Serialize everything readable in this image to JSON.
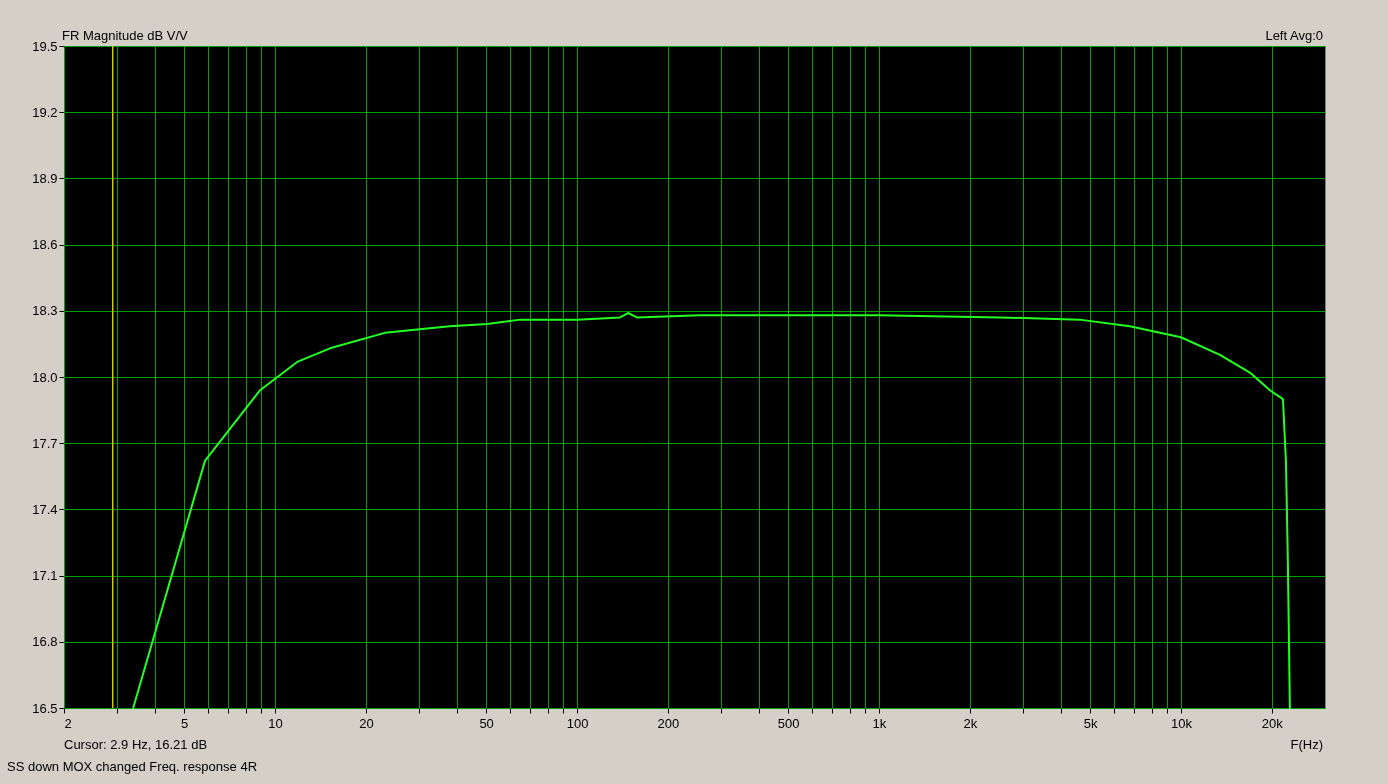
{
  "chart_data": {
    "type": "line",
    "ylabel": "FR Magnitude dB V/V",
    "xlabel": "F(Hz)",
    "annotations": [
      "Left  Avg:0",
      "Cursor:     2.9 Hz, 16.21 dB",
      "SS down MOX changed Freq. response 4R"
    ],
    "x": [
      3.39,
      5.86,
      8.92,
      11.9,
      15.2,
      23.1,
      37.9,
      50.4,
      64.9,
      100,
      138.8,
      147.6,
      158,
      255,
      1000,
      2515,
      4620,
      6770,
      10000,
      13470,
      16920,
      19720,
      21770,
      22270,
      22600,
      22950
    ],
    "series": [
      {
        "color": "#22ff22",
        "values": [
          16.5,
          17.62,
          17.94,
          18.07,
          18.13,
          18.2,
          18.23,
          18.24,
          18.26,
          18.26,
          18.27,
          18.29,
          18.27,
          18.28,
          18.28,
          18.27,
          18.26,
          18.23,
          18.18,
          18.1,
          18.02,
          17.94,
          17.9,
          17.62,
          17.17,
          16.5
        ]
      }
    ],
    "log": "x",
    "xlim": [
      2,
      30000
    ],
    "xticks": [
      2,
      {
        "value": 3,
        "label": null
      },
      {
        "value": 4,
        "label": null
      },
      5,
      {
        "value": 6,
        "label": null
      },
      {
        "value": 7,
        "label": null
      },
      {
        "value": 8,
        "label": null
      },
      {
        "value": 9,
        "label": null
      },
      10,
      20,
      {
        "value": 30,
        "label": null
      },
      {
        "value": 40,
        "label": null
      },
      50,
      {
        "value": 60,
        "label": null
      },
      {
        "value": 70,
        "label": null
      },
      {
        "value": 80,
        "label": null
      },
      {
        "value": 90,
        "label": null
      },
      100,
      200,
      {
        "value": 300,
        "label": null
      },
      {
        "value": 400,
        "label": null
      },
      500,
      {
        "value": 600,
        "label": null
      },
      {
        "value": 700,
        "label": null
      },
      {
        "value": 800,
        "label": null
      },
      {
        "value": 900,
        "label": null
      },
      {
        "value": 1000,
        "label": "1k"
      },
      {
        "value": 2000,
        "label": "2k"
      },
      {
        "value": 3000,
        "label": null
      },
      {
        "value": 4000,
        "label": null
      },
      {
        "value": 5000,
        "label": "5k"
      },
      {
        "value": 6000,
        "label": null
      },
      {
        "value": 7000,
        "label": null
      },
      {
        "value": 8000,
        "label": null
      },
      {
        "value": 9000,
        "label": null
      },
      {
        "value": 10000,
        "label": "10k"
      },
      {
        "value": 20000,
        "label": "20k"
      }
    ],
    "ylim": [
      16.5,
      19.5
    ],
    "yticks": [
      16.5,
      16.8,
      17.1,
      17.4,
      17.7,
      {
        "value": 18,
        "label": "18.0"
      },
      18.3,
      18.6,
      18.9,
      19.2,
      19.5
    ],
    "grid": true,
    "ref_lines": [
      {
        "axis": "x",
        "value": 2.9,
        "color": "#d4c800"
      }
    ]
  }
}
